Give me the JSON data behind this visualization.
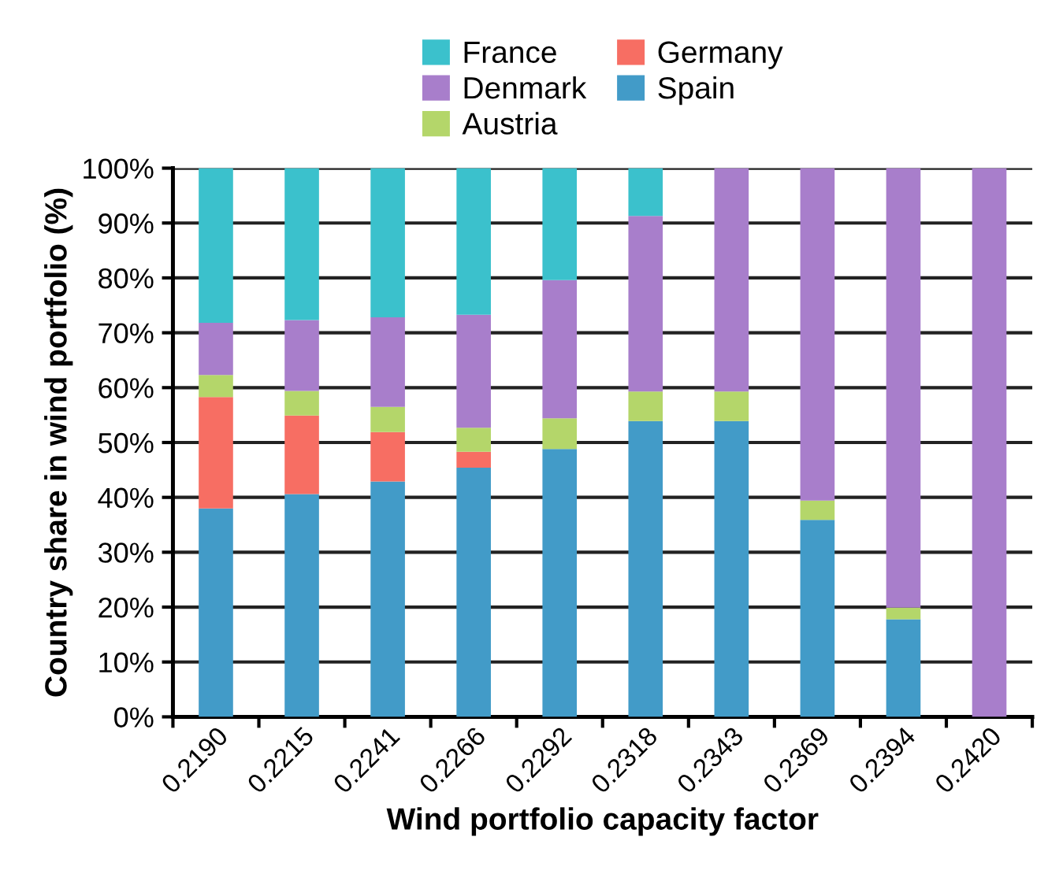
{
  "chart_data": {
    "type": "bar",
    "stacked": true,
    "xlabel": "Wind portfolio capacity factor",
    "ylabel": "Country share in wind portfolio (%)",
    "categories": [
      "0.2190",
      "0.2215",
      "0.2241",
      "0.2266",
      "0.2292",
      "0.2318",
      "0.2343",
      "0.2369",
      "0.2394",
      "0.2420"
    ],
    "series": [
      {
        "name": "Spain",
        "color": "#429bc8",
        "values": [
          38,
          40.6,
          42.9,
          45.4,
          48.8,
          53.9,
          53.9,
          35.9,
          17.8,
          0
        ]
      },
      {
        "name": "Germany",
        "color": "#f76e63",
        "values": [
          20.3,
          14.3,
          9.0,
          2.9,
          0,
          0,
          0,
          0,
          0,
          0
        ]
      },
      {
        "name": "Austria",
        "color": "#b4d66a",
        "values": [
          4.0,
          4.5,
          4.6,
          4.4,
          5.6,
          5.4,
          5.4,
          3.5,
          2.1,
          0
        ]
      },
      {
        "name": "Denmark",
        "color": "#a87ecb",
        "values": [
          9.5,
          12.9,
          16.3,
          20.6,
          25.2,
          32.0,
          40.7,
          60.6,
          80.1,
          100
        ]
      },
      {
        "name": "France",
        "color": "#3bc1cc",
        "values": [
          28.2,
          27.7,
          27.2,
          26.7,
          20.4,
          8.7,
          0,
          0,
          0,
          0
        ]
      }
    ],
    "ylim": [
      0,
      100
    ],
    "yticks": [
      {
        "value": 0,
        "label": "0%"
      },
      {
        "value": 10,
        "label": "10%"
      },
      {
        "value": 20,
        "label": "20%"
      },
      {
        "value": 30,
        "label": "30%"
      },
      {
        "value": 40,
        "label": "40%"
      },
      {
        "value": 50,
        "label": "50%"
      },
      {
        "value": 60,
        "label": "60%"
      },
      {
        "value": 70,
        "label": "70%"
      },
      {
        "value": 80,
        "label": "80%"
      },
      {
        "value": 90,
        "label": "90%"
      },
      {
        "value": 100,
        "label": "100%"
      }
    ],
    "grid": "y",
    "legend": "top"
  }
}
